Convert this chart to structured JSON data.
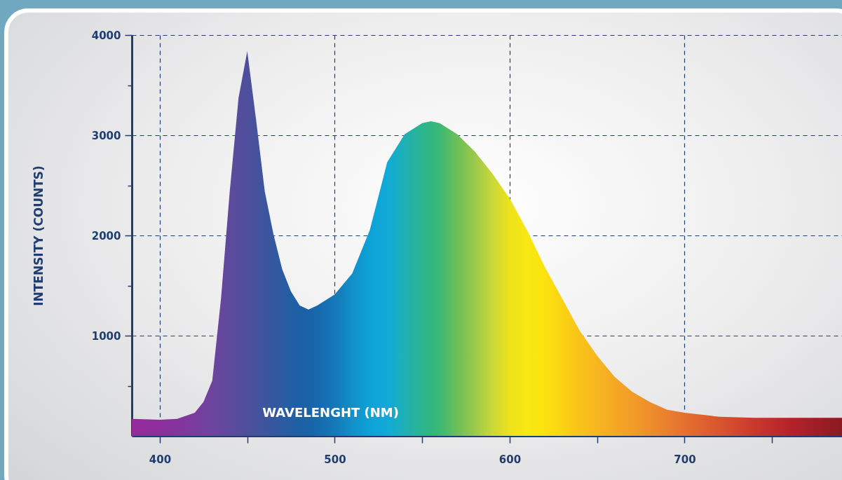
{
  "chart_data": {
    "type": "area",
    "xlabel": "WAVELENGHT (NM)",
    "ylabel": "INTENSITY (COUNTS)",
    "x": [
      384,
      400,
      410,
      420,
      425,
      430,
      435,
      440,
      445,
      450,
      455,
      460,
      465,
      470,
      475,
      480,
      485,
      490,
      500,
      510,
      520,
      530,
      540,
      550,
      555,
      560,
      570,
      580,
      590,
      600,
      610,
      620,
      630,
      640,
      650,
      660,
      670,
      680,
      690,
      700,
      720,
      740,
      760,
      790
    ],
    "values": [
      170,
      160,
      170,
      230,
      340,
      550,
      1370,
      2440,
      3370,
      3840,
      3160,
      2440,
      2010,
      1660,
      1440,
      1300,
      1260,
      1300,
      1410,
      1620,
      2050,
      2730,
      3010,
      3120,
      3140,
      3120,
      3010,
      2840,
      2620,
      2370,
      2050,
      1690,
      1370,
      1050,
      800,
      590,
      440,
      340,
      260,
      230,
      190,
      180,
      180,
      180
    ],
    "colors": [
      "#962b9b",
      "#8e2e9c",
      "#84349d",
      "#7a3b9e",
      "#74409e",
      "#6d449e",
      "#65479d",
      "#5d4a9c",
      "#554d9c",
      "#4d4f9c",
      "#46529d",
      "#3e559e",
      "#35589f",
      "#2c5ba1",
      "#235ea3",
      "#1d60a5",
      "#1a62a8",
      "#1868ae",
      "#1578b8",
      "#1190c8",
      "#0ea2d6",
      "#10aad8",
      "#1fb0b5",
      "#2bb58e",
      "#2fb67f",
      "#3cb874",
      "#6cbf57",
      "#9ac94a",
      "#c8d83a",
      "#eee21c",
      "#f8e812",
      "#fbe20f",
      "#fbd313",
      "#f9c31a",
      "#f7b61f",
      "#f5a824",
      "#f29c29",
      "#ee8e2c",
      "#ea802e",
      "#e4702f",
      "#d9552e",
      "#c8392c",
      "#b5232b",
      "#8a1a22"
    ],
    "xlim": [
      384,
      790
    ],
    "xticks": [
      400,
      {
        "value": 450,
        "label": null
      },
      500,
      {
        "value": 550,
        "label": null
      },
      600,
      {
        "value": 650,
        "label": null
      },
      700,
      {
        "value": 750,
        "label": null
      }
    ],
    "ylim": [
      0,
      4000
    ],
    "yticks": [
      {
        "value": 500,
        "label": null
      },
      1000,
      {
        "value": 1500,
        "label": null
      },
      2000,
      {
        "value": 2500,
        "label": null
      },
      3000,
      {
        "value": 3500,
        "label": null
      },
      4000
    ],
    "grid": true
  }
}
